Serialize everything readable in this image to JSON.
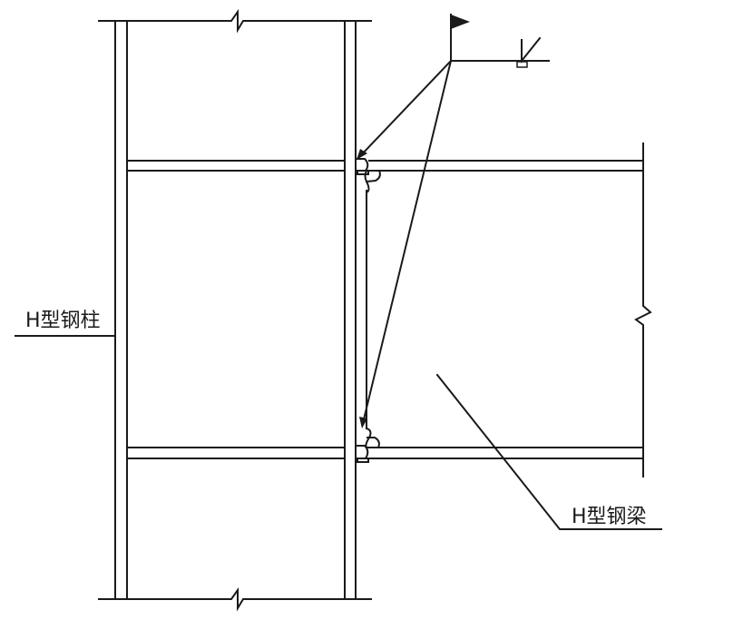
{
  "labels": {
    "column": "H型钢柱",
    "beam": "H型钢梁"
  },
  "colors": {
    "line": "#1a1a1a",
    "background": "#ffffff"
  },
  "weld_symbol": {
    "field_weld_flag": "flag-icon",
    "groove_symbol": "bevel-groove-icon",
    "backing": "backing-plate-icon"
  }
}
